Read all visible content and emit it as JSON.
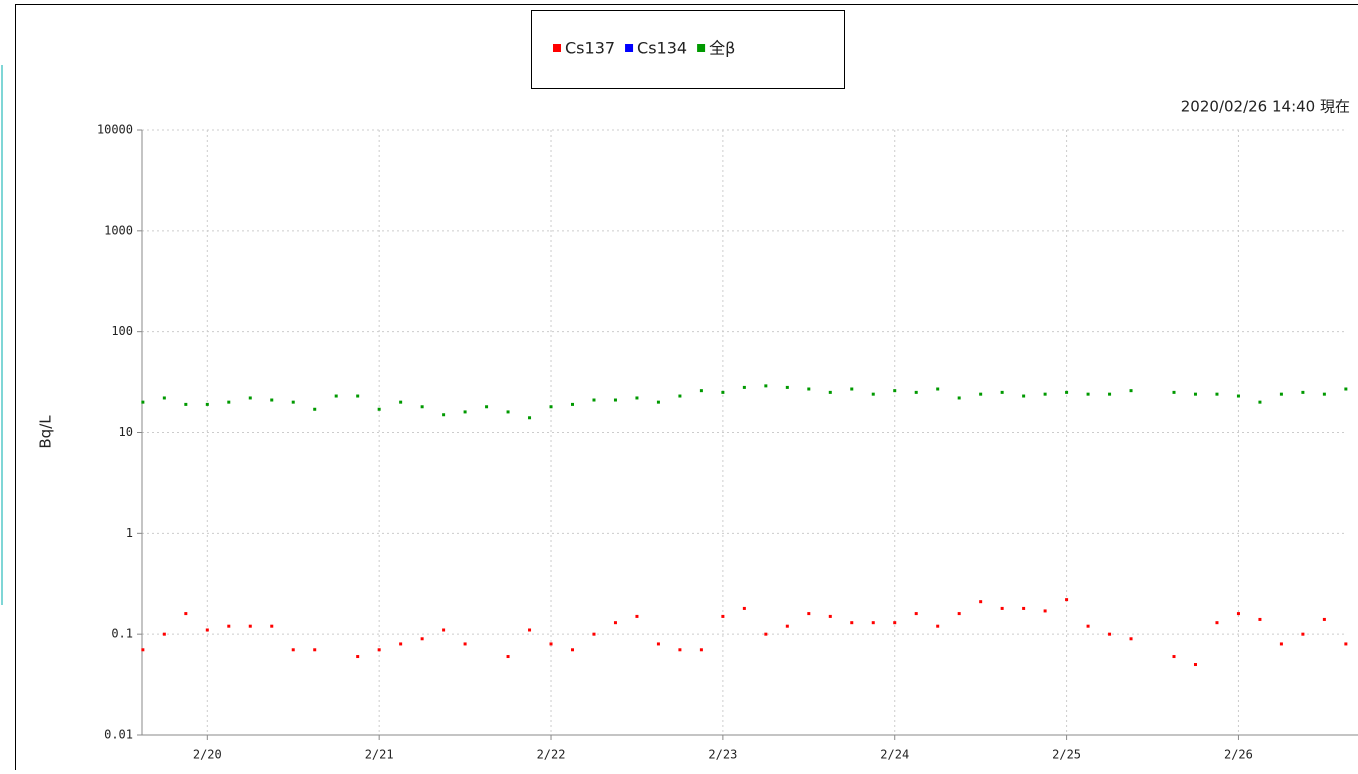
{
  "chart_data": {
    "type": "scatter",
    "timestamp": "2020/02/26 14:40 現在",
    "y_label": "Bq/L",
    "log_y": true,
    "grid": true,
    "legend": "top",
    "xlim": [
      19.62,
      26.62
    ],
    "xticks": [
      {
        "value": 20,
        "label": "2/20"
      },
      {
        "value": 21,
        "label": "2/21"
      },
      {
        "value": 22,
        "label": "2/22"
      },
      {
        "value": 23,
        "label": "2/23"
      },
      {
        "value": 24,
        "label": "2/24"
      },
      {
        "value": 25,
        "label": "2/25"
      },
      {
        "value": 26,
        "label": "2/26"
      }
    ],
    "ylim": [
      0.01,
      10000
    ],
    "yticks": [
      0.01,
      0.1,
      1,
      10,
      100,
      1000,
      10000
    ],
    "x": [
      19.625,
      19.75,
      19.875,
      20.0,
      20.125,
      20.25,
      20.375,
      20.5,
      20.625,
      20.75,
      20.875,
      21.0,
      21.125,
      21.25,
      21.375,
      21.5,
      21.625,
      21.75,
      21.875,
      22.0,
      22.125,
      22.25,
      22.375,
      22.5,
      22.625,
      22.75,
      22.875,
      23.0,
      23.125,
      23.25,
      23.375,
      23.5,
      23.625,
      23.75,
      23.875,
      24.0,
      24.125,
      24.25,
      24.375,
      24.5,
      24.625,
      24.75,
      24.875,
      25.0,
      25.125,
      25.25,
      25.375,
      25.5,
      25.625,
      25.75,
      25.875,
      26.0,
      26.125,
      26.25,
      26.375,
      26.5,
      26.625
    ],
    "series": [
      {
        "name": "Cs137",
        "color": "#ff0000",
        "values": [
          0.07,
          0.1,
          0.16,
          0.11,
          0.12,
          0.12,
          0.12,
          0.07,
          0.07,
          null,
          0.06,
          0.07,
          0.08,
          0.09,
          0.11,
          0.08,
          null,
          0.06,
          0.11,
          0.08,
          0.07,
          0.1,
          0.13,
          0.15,
          0.08,
          0.07,
          0.07,
          0.15,
          0.18,
          0.1,
          0.12,
          0.16,
          0.15,
          0.13,
          0.13,
          0.13,
          0.16,
          0.12,
          0.16,
          0.21,
          0.18,
          0.18,
          0.17,
          0.22,
          0.12,
          0.1,
          0.09,
          null,
          0.06,
          0.05,
          0.13,
          0.16,
          0.14,
          0.08,
          0.1,
          0.14,
          0.08
        ]
      },
      {
        "name": "Cs134",
        "color": "#0000ff",
        "values": [
          null,
          null,
          null,
          null,
          null,
          null,
          null,
          null,
          null,
          null,
          null,
          null,
          null,
          null,
          null,
          null,
          null,
          null,
          null,
          null,
          null,
          null,
          null,
          null,
          null,
          null,
          null,
          null,
          null,
          null,
          null,
          null,
          null,
          null,
          null,
          null,
          null,
          null,
          null,
          null,
          null,
          null,
          null,
          null,
          null,
          null,
          null,
          null,
          null,
          null,
          null,
          null,
          null,
          null,
          null,
          null,
          null
        ]
      },
      {
        "name": "全β",
        "color": "#009900",
        "values": [
          20,
          22,
          19,
          19,
          20,
          22,
          21,
          20,
          17,
          23,
          23,
          17,
          20,
          18,
          15,
          16,
          18,
          16,
          14,
          18,
          19,
          21,
          21,
          22,
          20,
          23,
          26,
          25,
          28,
          29,
          28,
          27,
          25,
          27,
          24,
          26,
          25,
          27,
          22,
          24,
          25,
          23,
          24,
          25,
          24,
          24,
          26,
          null,
          25,
          24,
          24,
          23,
          20,
          24,
          25,
          24,
          27
        ]
      }
    ]
  }
}
